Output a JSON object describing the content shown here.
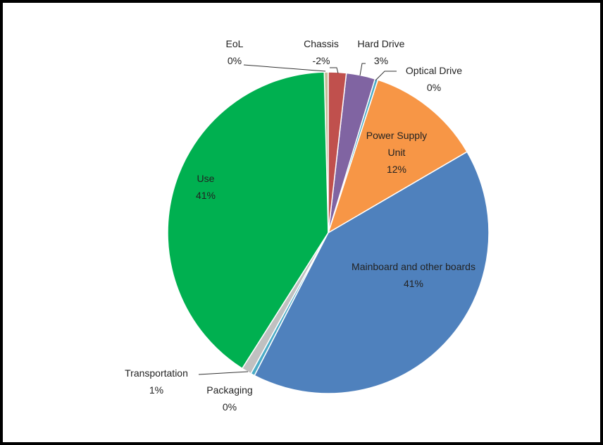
{
  "chart_data": {
    "type": "pie",
    "categories": [
      "Chassis",
      "Hard Drive",
      "Optical Drive",
      "Power Supply Unit",
      "Mainboard and other boards",
      "Packaging",
      "Transportation",
      "Use",
      "EoL"
    ],
    "values": [
      -1.8,
      2.9,
      0.3,
      11.6,
      41.0,
      0.4,
      1.0,
      40.6,
      0.4
    ],
    "value_labels": [
      "-2%",
      "3%",
      "0%",
      "12%",
      "41%",
      "0%",
      "1%",
      "41%",
      "0%"
    ],
    "colors": [
      "#c0504d",
      "#8064a2",
      "#4bacc6",
      "#f79646",
      "#4f81bd",
      "#4bacc6",
      "#c0c0c0",
      "#00b050",
      "#c4bd97"
    ]
  }
}
